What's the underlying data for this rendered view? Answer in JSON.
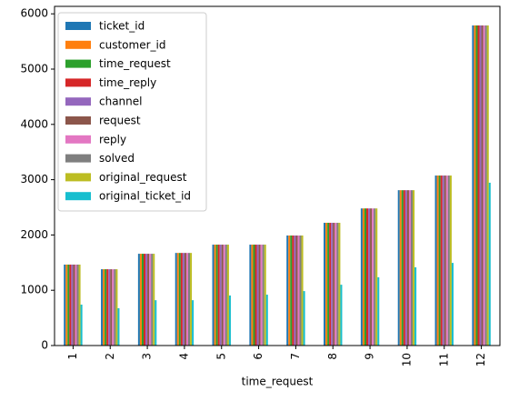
{
  "chart_data": {
    "type": "bar",
    "xlabel": "time_request",
    "categories": [
      "1",
      "2",
      "3",
      "4",
      "5",
      "6",
      "7",
      "8",
      "9",
      "10",
      "11",
      "12"
    ],
    "series": [
      {
        "name": "ticket_id",
        "color": "#1f77b4",
        "values": [
          1464,
          1380,
          1660,
          1675,
          1825,
          1825,
          1990,
          2220,
          2480,
          2810,
          3075,
          5790
        ]
      },
      {
        "name": "customer_id",
        "color": "#ff7f0e",
        "values": [
          1464,
          1380,
          1660,
          1675,
          1825,
          1825,
          1990,
          2220,
          2480,
          2810,
          3075,
          5790
        ]
      },
      {
        "name": "time_request",
        "color": "#2ca02c",
        "values": [
          1464,
          1380,
          1660,
          1675,
          1825,
          1825,
          1990,
          2220,
          2480,
          2810,
          3075,
          5790
        ]
      },
      {
        "name": "time_reply",
        "color": "#d62728",
        "values": [
          1464,
          1380,
          1660,
          1675,
          1825,
          1825,
          1990,
          2220,
          2480,
          2810,
          3075,
          5790
        ]
      },
      {
        "name": "channel",
        "color": "#9467bd",
        "values": [
          1464,
          1380,
          1660,
          1675,
          1825,
          1825,
          1990,
          2220,
          2480,
          2810,
          3075,
          5790
        ]
      },
      {
        "name": "request",
        "color": "#8c564b",
        "values": [
          1464,
          1380,
          1660,
          1675,
          1825,
          1825,
          1990,
          2220,
          2480,
          2810,
          3075,
          5790
        ]
      },
      {
        "name": "reply",
        "color": "#e377c2",
        "values": [
          1464,
          1380,
          1660,
          1675,
          1825,
          1825,
          1990,
          2220,
          2480,
          2810,
          3075,
          5790
        ]
      },
      {
        "name": "solved",
        "color": "#7f7f7f",
        "values": [
          1464,
          1380,
          1660,
          1675,
          1825,
          1825,
          1990,
          2220,
          2480,
          2810,
          3075,
          5790
        ]
      },
      {
        "name": "original_request",
        "color": "#bcbd22",
        "values": [
          1464,
          1380,
          1660,
          1675,
          1825,
          1825,
          1990,
          2220,
          2480,
          2810,
          3075,
          5790
        ]
      },
      {
        "name": "original_ticket_id",
        "color": "#17becf",
        "values": [
          740,
          675,
          820,
          820,
          905,
          920,
          985,
          1100,
          1235,
          1415,
          1495,
          2945
        ]
      }
    ],
    "ylim": [
      0,
      6135
    ],
    "yticks": [
      0,
      1000,
      2000,
      3000,
      4000,
      5000,
      6000
    ],
    "grid": false,
    "legend": "upper left"
  }
}
